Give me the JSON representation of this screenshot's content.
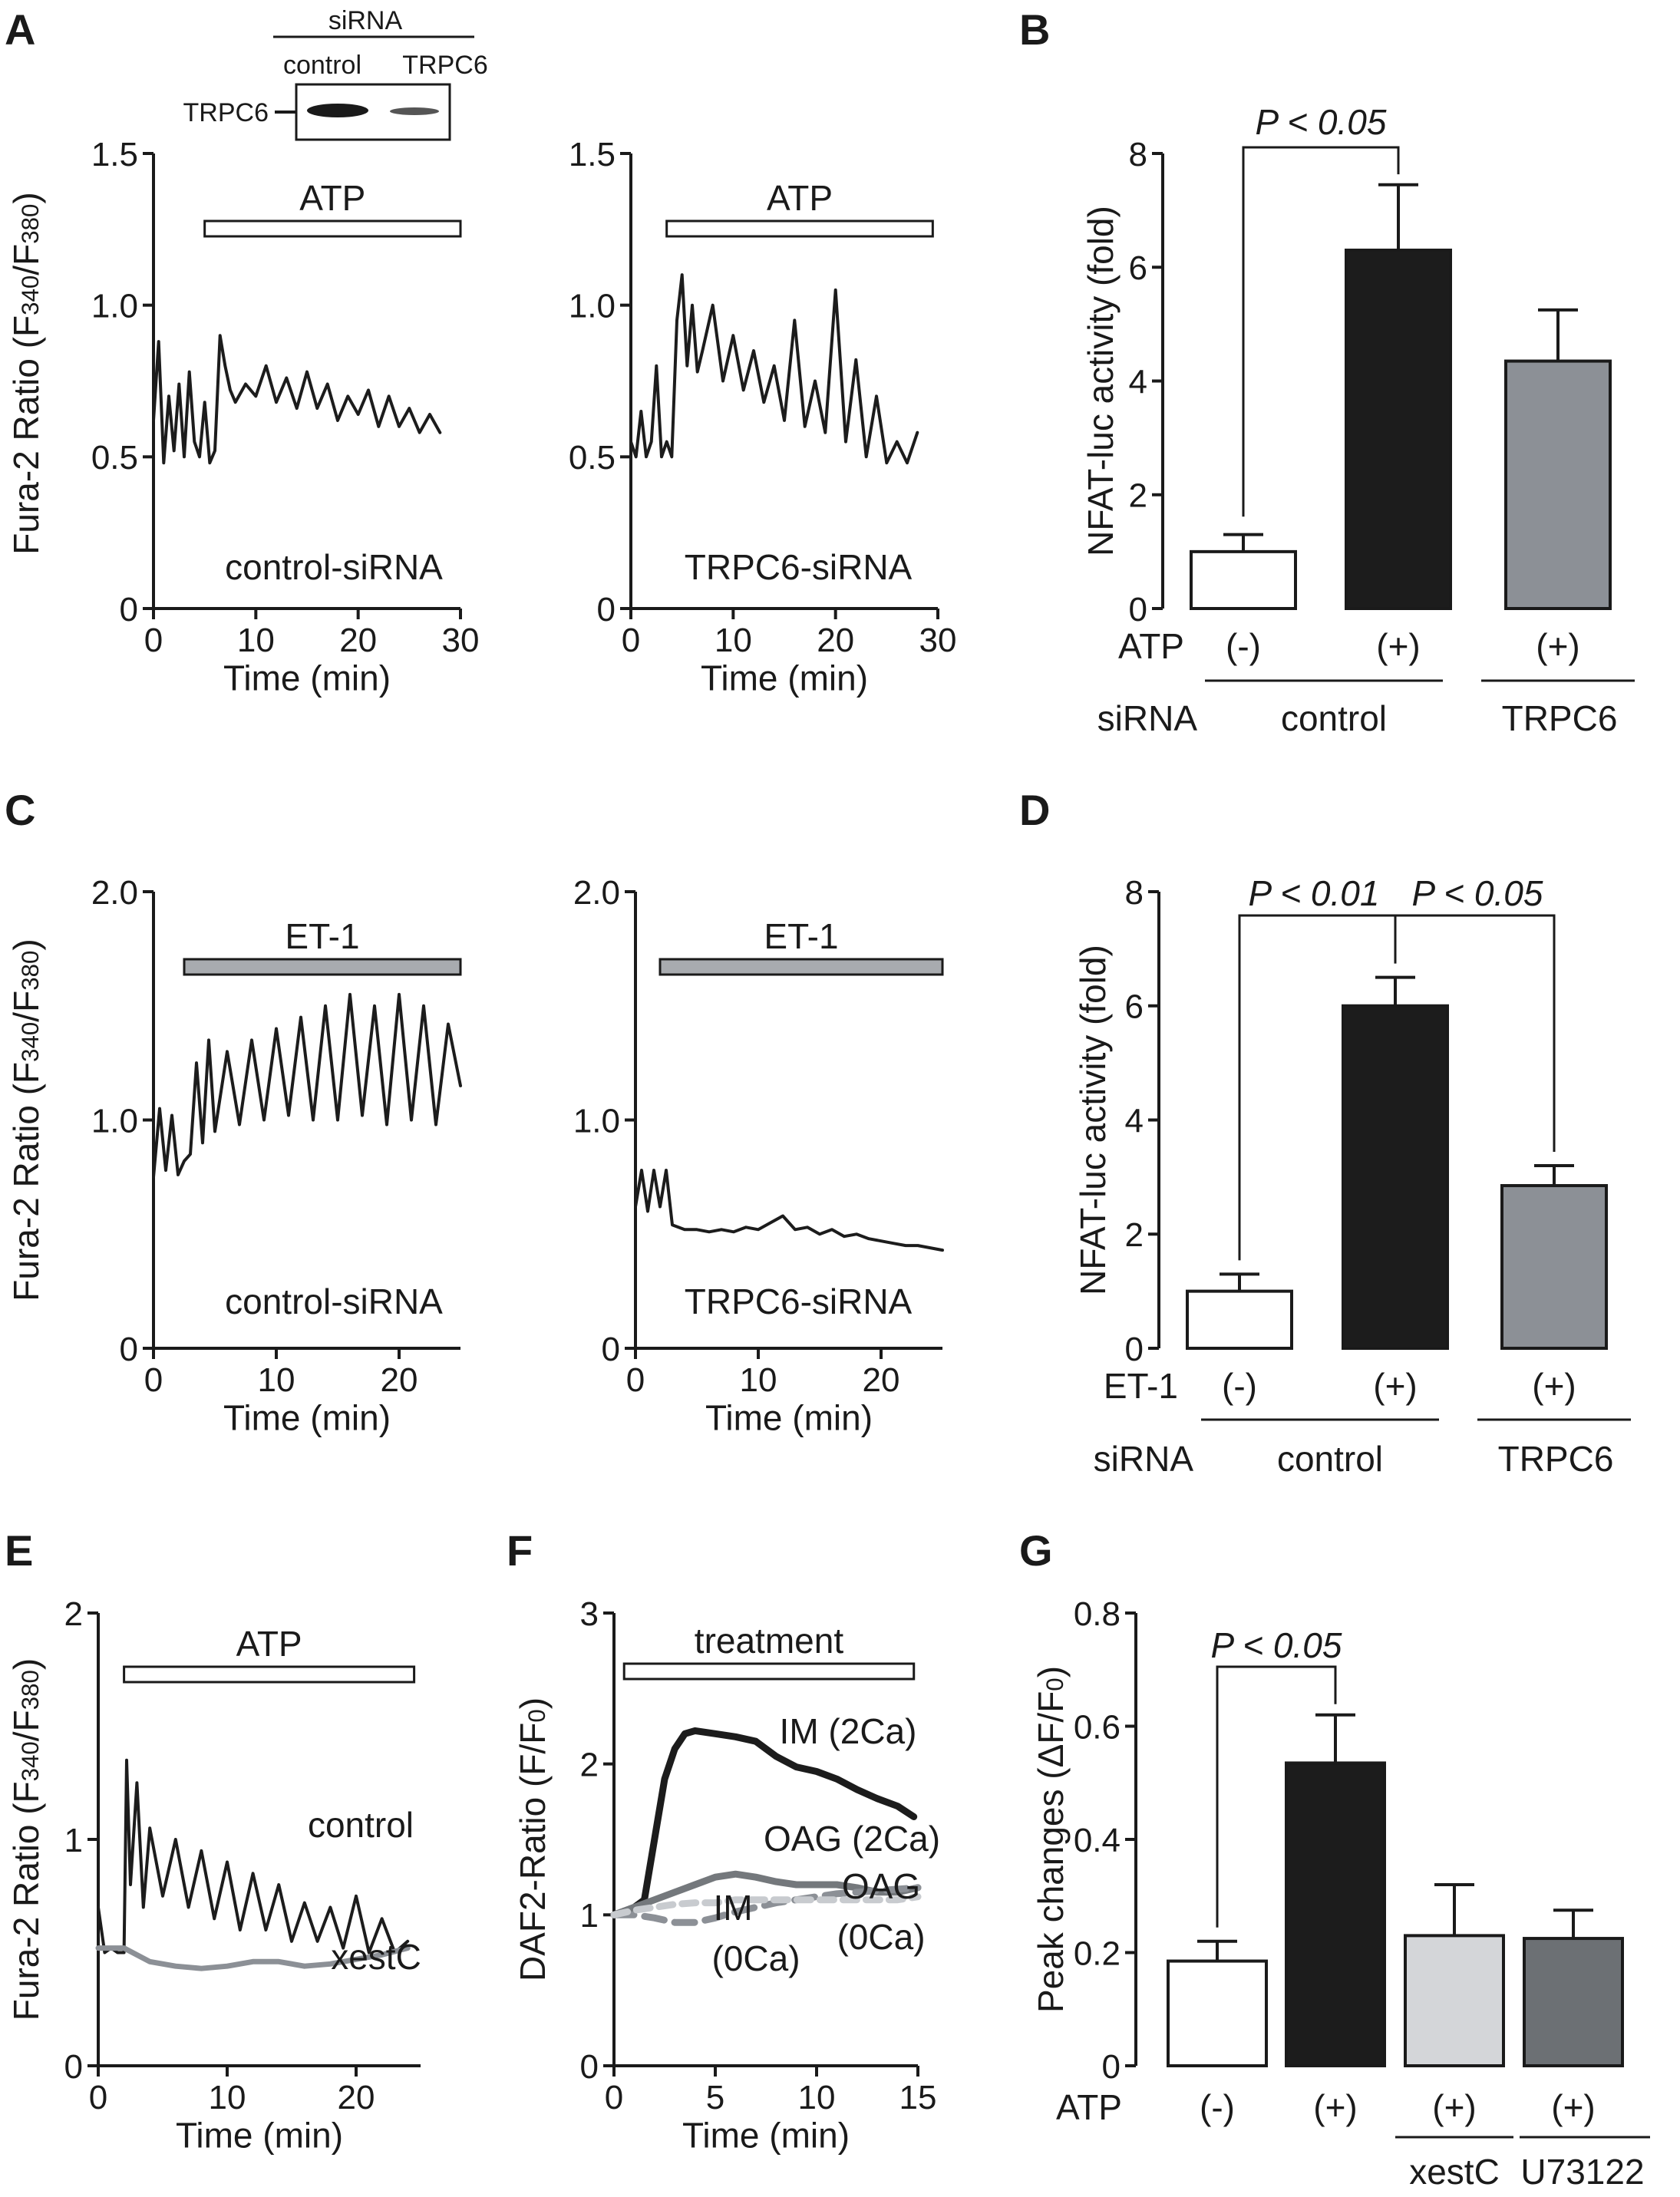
{
  "chart_data": [
    {
      "panel": "A",
      "type": "line",
      "title": "",
      "xlabel": "Time (min)",
      "ylabel": "Fura-2 Ratio (F340/F380)",
      "xlim": [
        0,
        30
      ],
      "ylim": [
        0,
        1.5
      ],
      "xticks": [
        "0",
        "10",
        "20",
        "30"
      ],
      "yticks": [
        "0",
        "0.5",
        "1.0",
        "1.5"
      ],
      "annotation": "control-siRNA",
      "bar_label": "ATP",
      "bar_range": [
        5,
        30
      ],
      "series": [
        {
          "name": "control-siRNA",
          "x": [
            0,
            0.5,
            1,
            1.5,
            2,
            2.5,
            3,
            3.5,
            4,
            4.5,
            5,
            5.5,
            6,
            6.5,
            7,
            7.5,
            8,
            9,
            10,
            11,
            12,
            13,
            14,
            15,
            16,
            17,
            18,
            19,
            20,
            21,
            22,
            23,
            24,
            25,
            26,
            27,
            28
          ],
          "y": [
            0.62,
            0.88,
            0.48,
            0.7,
            0.52,
            0.74,
            0.5,
            0.78,
            0.55,
            0.5,
            0.68,
            0.48,
            0.52,
            0.9,
            0.8,
            0.72,
            0.68,
            0.74,
            0.7,
            0.8,
            0.68,
            0.76,
            0.66,
            0.78,
            0.66,
            0.74,
            0.62,
            0.7,
            0.64,
            0.72,
            0.6,
            0.7,
            0.6,
            0.66,
            0.58,
            0.64,
            0.58
          ]
        }
      ]
    },
    {
      "panel": "A2",
      "type": "line",
      "title": "",
      "xlabel": "Time (min)",
      "ylabel": "",
      "xlim": [
        0,
        30
      ],
      "ylim": [
        0,
        1.5
      ],
      "xticks": [
        "0",
        "10",
        "20",
        "30"
      ],
      "yticks": [
        "0",
        "0.5",
        "1.0",
        "1.5"
      ],
      "annotation": "TRPC6-siRNA",
      "bar_label": "ATP",
      "bar_range": [
        3.5,
        29.5
      ],
      "series": [
        {
          "name": "TRPC6-siRNA",
          "x": [
            0,
            0.5,
            1,
            1.5,
            2,
            2.5,
            3,
            3.5,
            4,
            4.5,
            5,
            5.5,
            6,
            6.5,
            7,
            8,
            9,
            10,
            11,
            12,
            13,
            14,
            15,
            16,
            17,
            18,
            19,
            20,
            21,
            22,
            23,
            24,
            25,
            26,
            27,
            28
          ],
          "y": [
            0.55,
            0.5,
            0.65,
            0.5,
            0.55,
            0.8,
            0.5,
            0.55,
            0.5,
            0.95,
            1.1,
            0.8,
            1.0,
            0.78,
            0.85,
            1.0,
            0.75,
            0.9,
            0.72,
            0.85,
            0.68,
            0.8,
            0.62,
            0.95,
            0.6,
            0.75,
            0.58,
            1.05,
            0.55,
            0.82,
            0.5,
            0.7,
            0.48,
            0.55,
            0.48,
            0.58
          ]
        }
      ]
    },
    {
      "panel": "B",
      "type": "bar",
      "title": "",
      "xlabel": "",
      "ylabel": "NFAT-luc activity (fold)",
      "ylim": [
        0,
        8
      ],
      "yticks": [
        "0",
        "2",
        "4",
        "6",
        "8"
      ],
      "categories": [
        "(-)",
        "(+)",
        "(+)"
      ],
      "values": [
        1.0,
        6.3,
        4.35
      ],
      "errors": [
        0.3,
        1.15,
        0.9
      ],
      "colors": [
        "#ffffff",
        "#1c1c1c",
        "#8c9096"
      ],
      "row1_label": "ATP",
      "row2_label": "siRNA",
      "groups": [
        "control",
        "TRPC6"
      ],
      "significance": [
        "P < 0.05"
      ]
    },
    {
      "panel": "C",
      "type": "line",
      "title": "",
      "xlabel": "Time (min)",
      "ylabel": "Fura-2 Ratio (F340/F380)",
      "xlim": [
        0,
        25
      ],
      "ylim": [
        0,
        2.0
      ],
      "xticks": [
        "0",
        "10",
        "20"
      ],
      "yticks": [
        "0",
        "1.0",
        "2.0"
      ],
      "annotation": "control-siRNA",
      "bar_label": "ET-1",
      "bar_range": [
        2.5,
        25
      ],
      "series": [
        {
          "name": "control-siRNA",
          "x": [
            0,
            0.5,
            1,
            1.5,
            2,
            2.5,
            3,
            3.5,
            4,
            4.5,
            5,
            6,
            7,
            8,
            9,
            10,
            11,
            12,
            13,
            14,
            15,
            16,
            17,
            18,
            19,
            20,
            21,
            22,
            23,
            24,
            25
          ],
          "y": [
            0.75,
            1.05,
            0.78,
            1.02,
            0.76,
            0.82,
            0.85,
            1.25,
            0.9,
            1.35,
            0.95,
            1.3,
            0.98,
            1.35,
            1.0,
            1.4,
            1.02,
            1.45,
            1.0,
            1.5,
            1.0,
            1.55,
            1.02,
            1.5,
            0.98,
            1.55,
            1.0,
            1.5,
            0.98,
            1.42,
            1.15
          ]
        }
      ]
    },
    {
      "panel": "C2",
      "type": "line",
      "title": "",
      "xlabel": "Time (min)",
      "ylabel": "",
      "xlim": [
        0,
        25
      ],
      "ylim": [
        0,
        2.0
      ],
      "xticks": [
        "0",
        "10",
        "20"
      ],
      "yticks": [
        "0",
        "1.0",
        "2.0"
      ],
      "annotation": "TRPC6-siRNA",
      "bar_label": "ET-1",
      "bar_range": [
        2,
        25
      ],
      "series": [
        {
          "name": "TRPC6-siRNA",
          "x": [
            0,
            0.5,
            1,
            1.5,
            2,
            2.5,
            3,
            4,
            5,
            6,
            7,
            8,
            9,
            10,
            11,
            12,
            13,
            14,
            15,
            16,
            17,
            18,
            19,
            20,
            21,
            22,
            23,
            24,
            25
          ],
          "y": [
            0.62,
            0.78,
            0.6,
            0.78,
            0.62,
            0.78,
            0.54,
            0.52,
            0.52,
            0.51,
            0.52,
            0.51,
            0.53,
            0.52,
            0.55,
            0.58,
            0.52,
            0.53,
            0.5,
            0.52,
            0.49,
            0.5,
            0.48,
            0.47,
            0.46,
            0.45,
            0.45,
            0.44,
            0.43
          ]
        }
      ]
    },
    {
      "panel": "D",
      "type": "bar",
      "title": "",
      "xlabel": "",
      "ylabel": "NFAT-luc activity (fold)",
      "ylim": [
        0,
        8
      ],
      "yticks": [
        "0",
        "2",
        "4",
        "6",
        "8"
      ],
      "categories": [
        "(-)",
        "(+)",
        "(+)"
      ],
      "values": [
        1.0,
        6.0,
        2.85
      ],
      "errors": [
        0.3,
        0.5,
        0.35
      ],
      "colors": [
        "#ffffff",
        "#1c1c1c",
        "#8c9096"
      ],
      "row1_label": "ET-1",
      "row2_label": "siRNA",
      "groups": [
        "control",
        "TRPC6"
      ],
      "significance": [
        "P < 0.01",
        "P < 0.05"
      ]
    },
    {
      "panel": "E",
      "type": "line",
      "title": "",
      "xlabel": "Time (min)",
      "ylabel": "Fura-2 Ratio (F340/F380)",
      "xlim": [
        0,
        25
      ],
      "ylim": [
        0,
        2
      ],
      "xticks": [
        "0",
        "10",
        "20"
      ],
      "yticks": [
        "0",
        "1",
        "2"
      ],
      "bar_label": "ATP",
      "bar_range": [
        2,
        24.5
      ],
      "series": [
        {
          "name": "control",
          "color": "#1c1c1c",
          "x": [
            0,
            0.5,
            1,
            1.5,
            2,
            2.2,
            2.5,
            3,
            3.5,
            4,
            5,
            6,
            7,
            8,
            9,
            10,
            11,
            12,
            13,
            14,
            15,
            16,
            17,
            18,
            19,
            20,
            21,
            22,
            23,
            24
          ],
          "y": [
            0.7,
            0.5,
            0.52,
            0.5,
            0.5,
            1.35,
            0.8,
            1.25,
            0.7,
            1.05,
            0.75,
            1.0,
            0.7,
            0.95,
            0.65,
            0.9,
            0.6,
            0.85,
            0.6,
            0.8,
            0.55,
            0.72,
            0.55,
            0.7,
            0.52,
            0.75,
            0.5,
            0.65,
            0.5,
            0.55
          ]
        },
        {
          "name": "xestC",
          "color": "#8c9096",
          "x": [
            0,
            2,
            4,
            6,
            8,
            10,
            12,
            14,
            16,
            18,
            20,
            22,
            24
          ],
          "y": [
            0.52,
            0.52,
            0.46,
            0.44,
            0.43,
            0.44,
            0.46,
            0.46,
            0.44,
            0.45,
            0.47,
            0.49,
            0.52
          ]
        }
      ]
    },
    {
      "panel": "F",
      "type": "line",
      "title": "",
      "xlabel": "Time (min)",
      "ylabel": "DAF2-Ratio (F/F0)",
      "xlim": [
        0,
        15
      ],
      "ylim": [
        0,
        3
      ],
      "xticks": [
        "0",
        "5",
        "10",
        "15"
      ],
      "yticks": [
        "0",
        "1",
        "2",
        "3"
      ],
      "bar_label": "treatment",
      "bar_range": [
        0.5,
        14.8
      ],
      "series": [
        {
          "name": "IM (2Ca)",
          "color": "#1c1c1c",
          "x": [
            0,
            1,
            1.5,
            2,
            2.5,
            3,
            3.5,
            4,
            5,
            6,
            7,
            8,
            9,
            10,
            11,
            12,
            13,
            14,
            14.8
          ],
          "y": [
            1.0,
            1.05,
            1.1,
            1.5,
            1.9,
            2.1,
            2.2,
            2.22,
            2.2,
            2.18,
            2.15,
            2.05,
            1.98,
            1.95,
            1.9,
            1.83,
            1.77,
            1.72,
            1.65
          ]
        },
        {
          "name": "OAG (2Ca)",
          "color": "#74787c",
          "x": [
            0,
            1,
            2,
            3,
            4,
            5,
            6,
            7,
            8,
            9,
            10,
            11,
            12,
            13,
            14,
            15
          ],
          "y": [
            1.0,
            1.05,
            1.1,
            1.15,
            1.2,
            1.25,
            1.27,
            1.25,
            1.22,
            1.2,
            1.2,
            1.2,
            1.18,
            1.15,
            1.15,
            1.18
          ]
        },
        {
          "name": "IM (0Ca)",
          "color": "#8c9096",
          "x": [
            0,
            1,
            2,
            3,
            4,
            5,
            6,
            7,
            8,
            9,
            10,
            11,
            12,
            13,
            14,
            15
          ],
          "y": [
            1.0,
            1.0,
            0.98,
            0.95,
            0.95,
            0.98,
            1.02,
            1.05,
            1.08,
            1.1,
            1.12,
            1.14,
            1.15,
            1.16,
            1.17,
            1.18
          ]
        },
        {
          "name": "OAG (0Ca)",
          "color": "#c8cbcf",
          "x": [
            0,
            1,
            2,
            3,
            4,
            5,
            6,
            7,
            8,
            9,
            10,
            11,
            12,
            13,
            14,
            15
          ],
          "y": [
            1.0,
            1.03,
            1.05,
            1.07,
            1.08,
            1.08,
            1.1,
            1.1,
            1.1,
            1.1,
            1.1,
            1.1,
            1.1,
            1.1,
            1.1,
            1.12
          ]
        }
      ]
    },
    {
      "panel": "G",
      "type": "bar",
      "title": "",
      "xlabel": "",
      "ylabel": "Peak changes (ΔF/F0)",
      "ylim": [
        0,
        0.8
      ],
      "yticks": [
        "0",
        "0.2",
        "0.4",
        "0.6",
        "0.8"
      ],
      "categories": [
        "(-)",
        "(+)",
        "(+)",
        "(+)"
      ],
      "values": [
        0.185,
        0.535,
        0.23,
        0.225
      ],
      "errors": [
        0.035,
        0.085,
        0.09,
        0.05
      ],
      "colors": [
        "#ffffff",
        "#1c1c1c",
        "#d4d6d9",
        "#6c7074"
      ],
      "row1_label": "ATP",
      "groups": [
        "xestC",
        "U73122"
      ],
      "significance": [
        "P < 0.05"
      ]
    }
  ],
  "panels": {
    "A": {
      "letter": "A",
      "blot": {
        "header": "siRNA",
        "lanes": [
          "control",
          "TRPC6"
        ],
        "band_label": "TRPC6"
      }
    },
    "B": {
      "letter": "B"
    },
    "C": {
      "letter": "C"
    },
    "D": {
      "letter": "D"
    },
    "E": {
      "letter": "E",
      "trace_labels": [
        "control",
        "xestC"
      ]
    },
    "F": {
      "letter": "F",
      "trace_labels": [
        "IM (2Ca)",
        "OAG (2Ca)",
        "IM",
        "(0Ca)",
        "OAG",
        "(0Ca)"
      ]
    },
    "G": {
      "letter": "G"
    }
  },
  "colors": {
    "ink": "#1a1a1a",
    "trace": "#1c1c1c",
    "bar_gray": "#8c9096",
    "light_gray": "#d4d6d9",
    "dark_gray": "#6c7074"
  }
}
